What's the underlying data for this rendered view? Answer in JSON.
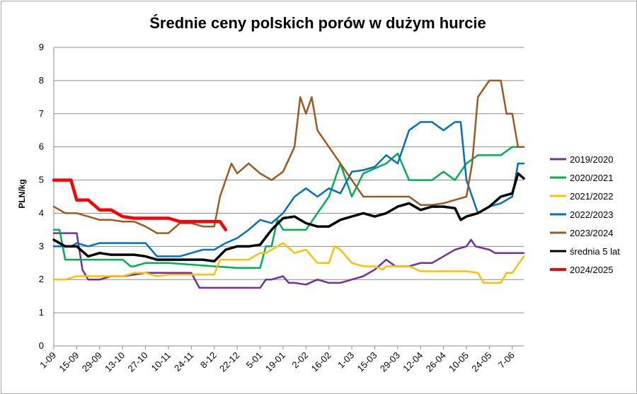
{
  "chart_data": {
    "type": "line",
    "title": "Średnie ceny polskich porów w dużym hurcie",
    "ylabel": "PLN/kg",
    "xlabel": "",
    "ylim": [
      0,
      9
    ],
    "yticks": [
      0,
      1,
      2,
      3,
      4,
      5,
      6,
      7,
      8,
      9
    ],
    "x_count": 42,
    "xtick_labels": [
      "1-09",
      "15-09",
      "29-09",
      "13-10",
      "27-10",
      "10-11",
      "24-11",
      "8-12",
      "22-12",
      "5-01",
      "19-01",
      "2-02",
      "16-02",
      "1-03",
      "15-03",
      "29-03",
      "12-04",
      "26-04",
      "10-05",
      "24-05",
      "7-06"
    ],
    "grid": "horizontal",
    "legend_position": "right",
    "series": [
      {
        "name": "2019/2020",
        "color": "#7030a0",
        "points": [
          [
            0,
            3.4
          ],
          [
            1,
            3.4
          ],
          [
            2,
            3.4
          ],
          [
            2.5,
            2.3
          ],
          [
            3,
            2.0
          ],
          [
            4,
            2.0
          ],
          [
            5,
            2.1
          ],
          [
            6,
            2.1
          ],
          [
            7,
            2.15
          ],
          [
            8,
            2.2
          ],
          [
            9,
            2.2
          ],
          [
            10,
            2.2
          ],
          [
            12,
            2.2
          ],
          [
            12.7,
            1.75
          ],
          [
            14,
            1.75
          ],
          [
            16,
            1.75
          ],
          [
            18,
            1.75
          ],
          [
            18.5,
            2.0
          ],
          [
            19,
            2.0
          ],
          [
            20,
            2.1
          ],
          [
            20.5,
            1.9
          ],
          [
            21,
            1.9
          ],
          [
            22,
            1.85
          ],
          [
            23,
            2.0
          ],
          [
            24,
            1.9
          ],
          [
            25,
            1.9
          ],
          [
            26,
            2.0
          ],
          [
            27,
            2.1
          ],
          [
            28,
            2.3
          ],
          [
            29,
            2.6
          ],
          [
            29.8,
            2.4
          ],
          [
            31,
            2.4
          ],
          [
            32,
            2.5
          ],
          [
            33,
            2.5
          ],
          [
            34,
            2.7
          ],
          [
            35,
            2.9
          ],
          [
            36,
            3.0
          ],
          [
            36.4,
            3.2
          ],
          [
            36.8,
            3.0
          ],
          [
            38,
            2.9
          ],
          [
            38.5,
            2.8
          ],
          [
            39,
            2.8
          ],
          [
            40,
            2.8
          ],
          [
            41,
            2.8
          ]
        ]
      },
      {
        "name": "2020/2021",
        "color": "#00b050",
        "points": [
          [
            0,
            3.5
          ],
          [
            0.5,
            3.5
          ],
          [
            1,
            2.6
          ],
          [
            2,
            2.6
          ],
          [
            3,
            2.6
          ],
          [
            4,
            2.6
          ],
          [
            5,
            2.6
          ],
          [
            6,
            2.6
          ],
          [
            6.7,
            2.4
          ],
          [
            7,
            2.4
          ],
          [
            8,
            2.5
          ],
          [
            9,
            2.5
          ],
          [
            10,
            2.5
          ],
          [
            12,
            2.45
          ],
          [
            14,
            2.4
          ],
          [
            16,
            2.35
          ],
          [
            18,
            2.35
          ],
          [
            18.5,
            3.0
          ],
          [
            19,
            3.0
          ],
          [
            19.5,
            3.8
          ],
          [
            20,
            3.5
          ],
          [
            21,
            3.5
          ],
          [
            22,
            3.5
          ],
          [
            23,
            4.0
          ],
          [
            24,
            4.5
          ],
          [
            25,
            5.5
          ],
          [
            26,
            4.5
          ],
          [
            27,
            5.2
          ],
          [
            29,
            5.5
          ],
          [
            30,
            5.8
          ],
          [
            31,
            5.0
          ],
          [
            32,
            5.0
          ],
          [
            33,
            5.0
          ],
          [
            34,
            5.25
          ],
          [
            35,
            5.0
          ],
          [
            36,
            5.5
          ],
          [
            37,
            5.75
          ],
          [
            38,
            5.75
          ],
          [
            39,
            5.75
          ],
          [
            40,
            6.0
          ],
          [
            41,
            6.0
          ]
        ]
      },
      {
        "name": "2021/2022",
        "color": "#ffc000",
        "points": [
          [
            0,
            2.0
          ],
          [
            1,
            2.0
          ],
          [
            2,
            2.1
          ],
          [
            3,
            2.1
          ],
          [
            4,
            2.1
          ],
          [
            5,
            2.1
          ],
          [
            6,
            2.1
          ],
          [
            7,
            2.2
          ],
          [
            8,
            2.2
          ],
          [
            9,
            2.1
          ],
          [
            10,
            2.15
          ],
          [
            11,
            2.15
          ],
          [
            12,
            2.15
          ],
          [
            13,
            2.15
          ],
          [
            14,
            2.15
          ],
          [
            14.5,
            2.6
          ],
          [
            15,
            2.6
          ],
          [
            16,
            2.6
          ],
          [
            17,
            2.6
          ],
          [
            18,
            2.8
          ],
          [
            18.5,
            2.8
          ],
          [
            19,
            2.9
          ],
          [
            20,
            3.1
          ],
          [
            21,
            2.8
          ],
          [
            22,
            2.9
          ],
          [
            23,
            2.5
          ],
          [
            24,
            2.5
          ],
          [
            24.5,
            3.0
          ],
          [
            25,
            2.9
          ],
          [
            26,
            2.5
          ],
          [
            27,
            2.4
          ],
          [
            28,
            2.4
          ],
          [
            28.7,
            2.3
          ],
          [
            29,
            2.4
          ],
          [
            31,
            2.4
          ],
          [
            32,
            2.25
          ],
          [
            33,
            2.25
          ],
          [
            34,
            2.25
          ],
          [
            35,
            2.25
          ],
          [
            36,
            2.25
          ],
          [
            37,
            2.2
          ],
          [
            37.5,
            1.9
          ],
          [
            38,
            1.9
          ],
          [
            39,
            1.9
          ],
          [
            39.5,
            2.2
          ],
          [
            40,
            2.2
          ],
          [
            41,
            2.7
          ]
        ]
      },
      {
        "name": "2022/2023",
        "color": "#0070c0",
        "points": [
          [
            0,
            3.0
          ],
          [
            1,
            3.0
          ],
          [
            1.5,
            3.0
          ],
          [
            2,
            3.1
          ],
          [
            3,
            3.0
          ],
          [
            4,
            3.1
          ],
          [
            5,
            3.1
          ],
          [
            6,
            3.1
          ],
          [
            7,
            3.1
          ],
          [
            8,
            3.1
          ],
          [
            9,
            2.7
          ],
          [
            10,
            2.7
          ],
          [
            11,
            2.7
          ],
          [
            12,
            2.8
          ],
          [
            13,
            2.9
          ],
          [
            14,
            2.9
          ],
          [
            15,
            3.1
          ],
          [
            16,
            3.25
          ],
          [
            17,
            3.5
          ],
          [
            18,
            3.8
          ],
          [
            19,
            3.7
          ],
          [
            20,
            4.0
          ],
          [
            21,
            4.5
          ],
          [
            22,
            4.75
          ],
          [
            23,
            4.5
          ],
          [
            24,
            4.75
          ],
          [
            25,
            4.6
          ],
          [
            26,
            5.25
          ],
          [
            27,
            5.3
          ],
          [
            28,
            5.4
          ],
          [
            29,
            5.75
          ],
          [
            30,
            5.5
          ],
          [
            31,
            6.5
          ],
          [
            32,
            6.75
          ],
          [
            33,
            6.75
          ],
          [
            34,
            6.5
          ],
          [
            35,
            6.75
          ],
          [
            35.5,
            6.75
          ],
          [
            36,
            5.0
          ],
          [
            37,
            4.0
          ],
          [
            38,
            4.2
          ],
          [
            39,
            4.3
          ],
          [
            40,
            4.5
          ],
          [
            40.5,
            5.5
          ],
          [
            41,
            5.5
          ]
        ]
      },
      {
        "name": "2023/2024",
        "color": "#9c5a1e",
        "points": [
          [
            0,
            4.2
          ],
          [
            1,
            4.0
          ],
          [
            2,
            4.0
          ],
          [
            3,
            3.9
          ],
          [
            4,
            3.8
          ],
          [
            5,
            3.8
          ],
          [
            6,
            3.75
          ],
          [
            7,
            3.75
          ],
          [
            8,
            3.6
          ],
          [
            9,
            3.4
          ],
          [
            10,
            3.4
          ],
          [
            11,
            3.7
          ],
          [
            12,
            3.7
          ],
          [
            13,
            3.6
          ],
          [
            14,
            3.6
          ],
          [
            14.5,
            4.5
          ],
          [
            15,
            5.0
          ],
          [
            15.5,
            5.5
          ],
          [
            16,
            5.2
          ],
          [
            17,
            5.5
          ],
          [
            18,
            5.2
          ],
          [
            19,
            5.0
          ],
          [
            20,
            5.25
          ],
          [
            21,
            6.0
          ],
          [
            21.5,
            7.5
          ],
          [
            22,
            7.0
          ],
          [
            22.5,
            7.5
          ],
          [
            23,
            6.5
          ],
          [
            24,
            6.0
          ],
          [
            25,
            5.5
          ],
          [
            26,
            5.0
          ],
          [
            27,
            4.5
          ],
          [
            28,
            4.5
          ],
          [
            29,
            4.5
          ],
          [
            30,
            4.5
          ],
          [
            31,
            4.5
          ],
          [
            32,
            4.25
          ],
          [
            33,
            4.25
          ],
          [
            34,
            4.3
          ],
          [
            35,
            4.4
          ],
          [
            36,
            4.5
          ],
          [
            36.5,
            5.5
          ],
          [
            37,
            7.5
          ],
          [
            38,
            8.0
          ],
          [
            39,
            8.0
          ],
          [
            39.5,
            7.0
          ],
          [
            40,
            7.0
          ],
          [
            40.5,
            6.0
          ],
          [
            41,
            6.0
          ]
        ]
      },
      {
        "name": "średnia 5 lat",
        "color": "#000000",
        "points": [
          [
            0,
            3.2
          ],
          [
            1,
            3.0
          ],
          [
            2,
            3.0
          ],
          [
            3,
            2.7
          ],
          [
            4,
            2.8
          ],
          [
            5,
            2.75
          ],
          [
            6,
            2.75
          ],
          [
            7,
            2.75
          ],
          [
            8,
            2.7
          ],
          [
            9,
            2.6
          ],
          [
            10,
            2.6
          ],
          [
            11,
            2.6
          ],
          [
            12,
            2.6
          ],
          [
            13,
            2.6
          ],
          [
            14,
            2.55
          ],
          [
            15,
            2.9
          ],
          [
            16,
            3.0
          ],
          [
            17,
            3.0
          ],
          [
            18,
            3.05
          ],
          [
            19,
            3.5
          ],
          [
            20,
            3.85
          ],
          [
            21,
            3.9
          ],
          [
            22,
            3.7
          ],
          [
            23,
            3.6
          ],
          [
            24,
            3.6
          ],
          [
            25,
            3.8
          ],
          [
            26,
            3.9
          ],
          [
            27,
            4.0
          ],
          [
            28,
            3.9
          ],
          [
            29,
            4.0
          ],
          [
            30,
            4.2
          ],
          [
            31,
            4.3
          ],
          [
            32,
            4.1
          ],
          [
            33,
            4.2
          ],
          [
            34,
            4.2
          ],
          [
            35,
            4.15
          ],
          [
            35.5,
            3.8
          ],
          [
            36,
            3.9
          ],
          [
            37,
            4.0
          ],
          [
            38,
            4.2
          ],
          [
            39,
            4.5
          ],
          [
            40,
            4.6
          ],
          [
            40.5,
            5.2
          ],
          [
            41,
            5.05
          ]
        ]
      },
      {
        "name": "2024/2025",
        "color": "#ff0000",
        "points": [
          [
            0,
            5.0
          ],
          [
            1,
            5.0
          ],
          [
            1.5,
            5.0
          ],
          [
            2,
            4.4
          ],
          [
            3,
            4.4
          ],
          [
            4,
            4.1
          ],
          [
            5,
            4.1
          ],
          [
            6,
            3.9
          ],
          [
            7,
            3.85
          ],
          [
            8,
            3.85
          ],
          [
            9,
            3.85
          ],
          [
            10,
            3.85
          ],
          [
            11,
            3.75
          ],
          [
            12,
            3.75
          ],
          [
            13,
            3.75
          ],
          [
            14,
            3.75
          ],
          [
            14.5,
            3.75
          ],
          [
            15,
            3.5
          ]
        ]
      }
    ]
  }
}
